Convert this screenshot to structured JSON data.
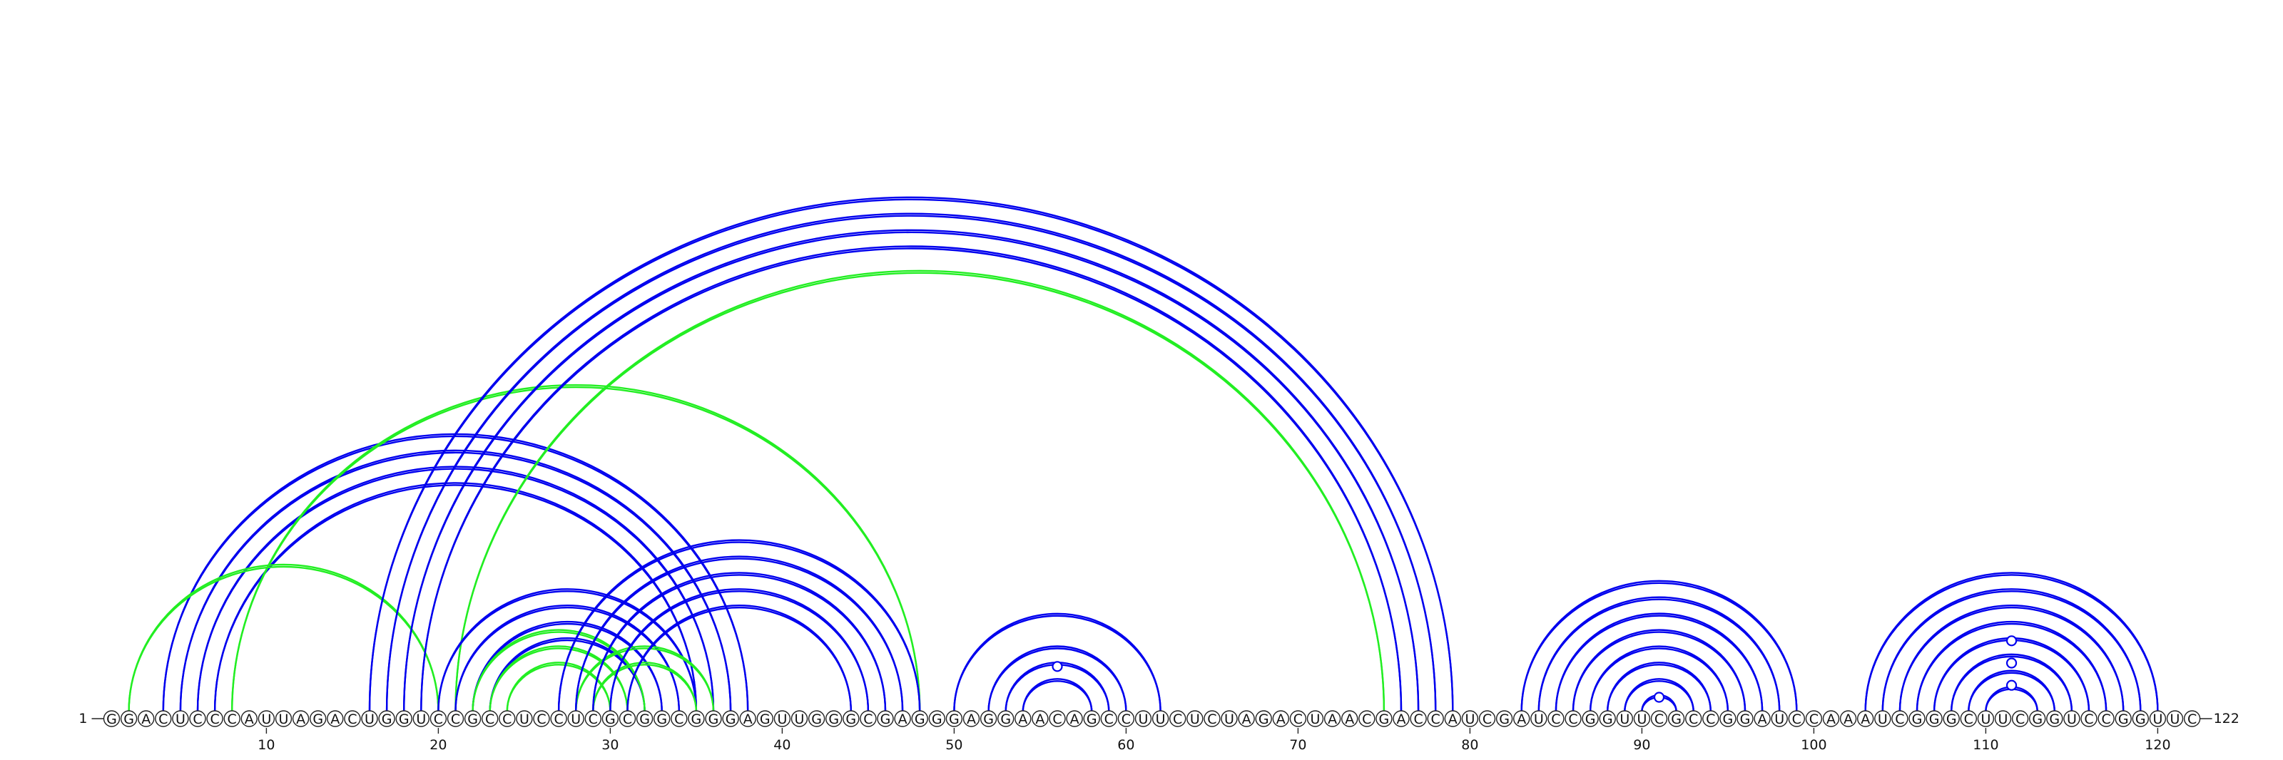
{
  "diagram": {
    "sequence": "GGACUCCCAUUAGACUGGUCCGCCUCCUCGCGGCGGGAGUUGGGCGAGGGAGGAACAGCCUUCUCUAGACUAACGACCAUCGAUCCGGUUCGCCGGAUCCAAAUCGGGCUUCGGUCCGGUUC",
    "length": 122,
    "start_label": "1",
    "end_label": "122",
    "tick_labels": [
      {
        "position": 10,
        "label": "10"
      },
      {
        "position": 20,
        "label": "20"
      },
      {
        "position": 30,
        "label": "30"
      },
      {
        "position": 40,
        "label": "40"
      },
      {
        "position": 50,
        "label": "50"
      },
      {
        "position": 60,
        "label": "60"
      },
      {
        "position": 70,
        "label": "70"
      },
      {
        "position": 80,
        "label": "80"
      },
      {
        "position": 90,
        "label": "90"
      },
      {
        "position": 100,
        "label": "100"
      },
      {
        "position": 110,
        "label": "110"
      },
      {
        "position": 120,
        "label": "120"
      }
    ],
    "colors": {
      "blue": "#0000ee",
      "green": "#22ee22"
    },
    "arcs": [
      {
        "i": 4,
        "j": 38,
        "color": "blue"
      },
      {
        "i": 5,
        "j": 37,
        "color": "blue"
      },
      {
        "i": 6,
        "j": 36,
        "color": "blue"
      },
      {
        "i": 7,
        "j": 35,
        "color": "blue"
      },
      {
        "i": 2,
        "j": 20,
        "color": "green"
      },
      {
        "i": 8,
        "j": 48,
        "color": "green"
      },
      {
        "i": 16,
        "j": 79,
        "color": "blue"
      },
      {
        "i": 17,
        "j": 78,
        "color": "blue"
      },
      {
        "i": 18,
        "j": 77,
        "color": "blue"
      },
      {
        "i": 19,
        "j": 76,
        "color": "blue"
      },
      {
        "i": 21,
        "j": 75,
        "color": "green"
      },
      {
        "i": 20,
        "j": 35,
        "color": "blue"
      },
      {
        "i": 21,
        "j": 34,
        "color": "blue"
      },
      {
        "i": 22,
        "j": 33,
        "color": "blue"
      },
      {
        "i": 23,
        "j": 32,
        "color": "blue"
      },
      {
        "i": 22,
        "j": 32,
        "color": "green"
      },
      {
        "i": 23,
        "j": 31,
        "color": "green"
      },
      {
        "i": 24,
        "j": 30,
        "color": "green"
      },
      {
        "i": 28,
        "j": 36,
        "color": "green"
      },
      {
        "i": 29,
        "j": 35,
        "color": "green"
      },
      {
        "i": 27,
        "j": 48,
        "color": "blue"
      },
      {
        "i": 28,
        "j": 47,
        "color": "blue"
      },
      {
        "i": 29,
        "j": 46,
        "color": "blue"
      },
      {
        "i": 30,
        "j": 45,
        "color": "blue"
      },
      {
        "i": 31,
        "j": 44,
        "color": "blue"
      },
      {
        "i": 50,
        "j": 62,
        "color": "blue"
      },
      {
        "i": 52,
        "j": 60,
        "color": "blue"
      },
      {
        "i": 53,
        "j": 59,
        "color": "blue"
      },
      {
        "i": 54,
        "j": 58,
        "color": "blue"
      },
      {
        "i": 83,
        "j": 99,
        "color": "blue"
      },
      {
        "i": 84,
        "j": 98,
        "color": "blue"
      },
      {
        "i": 85,
        "j": 97,
        "color": "blue"
      },
      {
        "i": 86,
        "j": 96,
        "color": "blue"
      },
      {
        "i": 87,
        "j": 95,
        "color": "blue"
      },
      {
        "i": 88,
        "j": 94,
        "color": "blue"
      },
      {
        "i": 89,
        "j": 93,
        "color": "blue"
      },
      {
        "i": 90,
        "j": 92,
        "color": "blue"
      },
      {
        "i": 103,
        "j": 120,
        "color": "blue"
      },
      {
        "i": 104,
        "j": 119,
        "color": "blue"
      },
      {
        "i": 105,
        "j": 118,
        "color": "blue"
      },
      {
        "i": 106,
        "j": 117,
        "color": "blue"
      },
      {
        "i": 107,
        "j": 116,
        "color": "blue"
      },
      {
        "i": 108,
        "j": 115,
        "color": "blue"
      },
      {
        "i": 109,
        "j": 114,
        "color": "blue"
      },
      {
        "i": 110,
        "j": 113,
        "color": "blue"
      }
    ],
    "loop_markers": [
      {
        "position": 56,
        "level": 0.36
      },
      {
        "position": 91,
        "level": 0.0
      },
      {
        "position": 111.5,
        "level": 0.66
      },
      {
        "position": 111.5,
        "level": 0.4
      },
      {
        "position": 111.5,
        "level": 0.14
      }
    ]
  }
}
